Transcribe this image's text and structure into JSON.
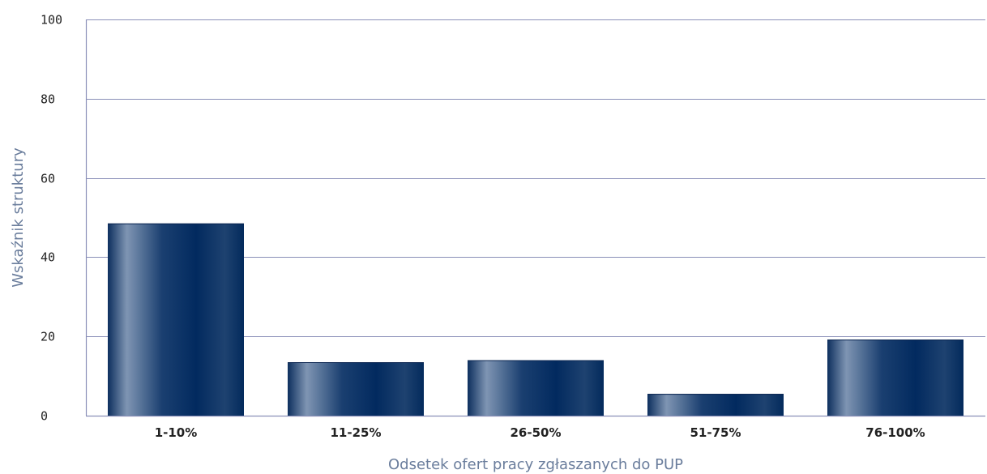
{
  "chart_data": {
    "type": "bar",
    "categories": [
      "1-10%",
      "11-25%",
      "26-50%",
      "51-75%",
      "76-100%"
    ],
    "values": [
      48.5,
      13.5,
      14.0,
      5.5,
      19.2
    ],
    "title": "",
    "xlabel": "Odsetek ofert pracy zgłaszanych do PUP",
    "ylabel": "Wskaźnik struktury",
    "ylim": [
      0,
      100
    ],
    "yticks": [
      0,
      20,
      40,
      60,
      80,
      100
    ],
    "grid": true,
    "legend": "none",
    "colors": {
      "bar_dark": "#022a5f",
      "bar_light": "#7f95b3",
      "grid": "#8a8fb8",
      "axis_title": "#6a7d9c"
    }
  }
}
